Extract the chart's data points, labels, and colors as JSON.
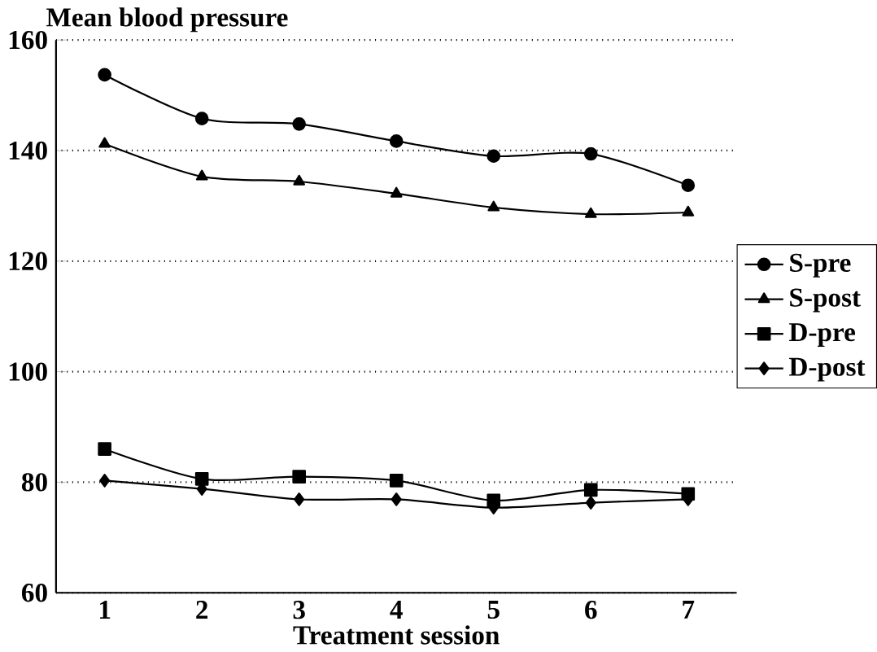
{
  "chart_data": {
    "type": "line",
    "xlabel": "Treatment session",
    "ylabel": "Mean blood pressure",
    "categories": [
      "1",
      "2",
      "3",
      "4",
      "5",
      "6",
      "7"
    ],
    "series": [
      {
        "name": "S-pre",
        "color": "#000000",
        "marker": "circle",
        "values": [
          153.7,
          145.8,
          144.8,
          141.7,
          139.0,
          139.4,
          133.7
        ]
      },
      {
        "name": "S-post",
        "color": "#000000",
        "marker": "triangle",
        "values": [
          141.2,
          135.3,
          134.4,
          132.2,
          129.7,
          128.5,
          128.8
        ]
      },
      {
        "name": "D-pre",
        "color": "#000000",
        "marker": "square",
        "values": [
          86.0,
          80.6,
          81.0,
          80.3,
          76.7,
          78.6,
          77.9
        ]
      },
      {
        "name": "D-post",
        "color": "#000000",
        "marker": "diamond",
        "values": [
          80.3,
          78.8,
          76.9,
          76.9,
          75.4,
          76.3,
          76.9
        ]
      }
    ],
    "ylim": [
      60,
      160
    ],
    "yticks": [
      60,
      80,
      100,
      120,
      140,
      160
    ],
    "grid": "y",
    "legend": "right",
    "line_style": "solid"
  }
}
